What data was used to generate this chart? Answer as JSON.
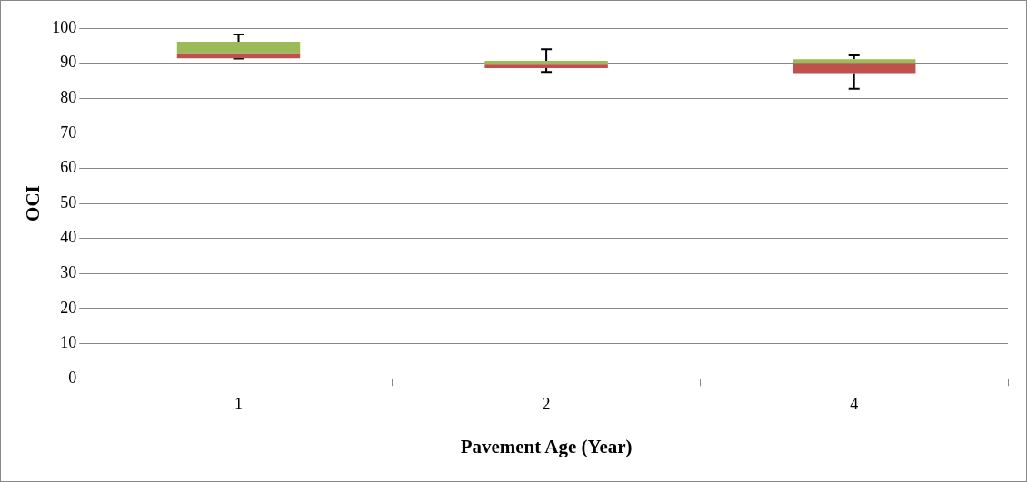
{
  "chart_data": {
    "type": "box",
    "xlabel": "Pavement Age (Year)",
    "ylabel": "OCI",
    "categories": [
      "1",
      "2",
      "4"
    ],
    "series": [
      {
        "color": "#9bbb59",
        "colors": [
          "#c0504d",
          "#c0504d",
          "#c0504d"
        ],
        "boxes": [
          {
            "low": 91.3,
            "q1": 91.4,
            "median": 92.8,
            "q3": 96.1,
            "high": 98.2
          },
          {
            "low": 87.5,
            "q1": 88.6,
            "median": 89.6,
            "q3": 90.7,
            "high": 94.0
          },
          {
            "low": 82.7,
            "q1": 87.2,
            "median": 90.0,
            "q3": 91.1,
            "high": 92.2
          }
        ]
      }
    ],
    "ylim": [
      0,
      100
    ],
    "yticks": [
      0,
      10,
      20,
      30,
      40,
      50,
      60,
      70,
      80,
      90,
      100
    ],
    "grid": "y",
    "legend": false
  }
}
